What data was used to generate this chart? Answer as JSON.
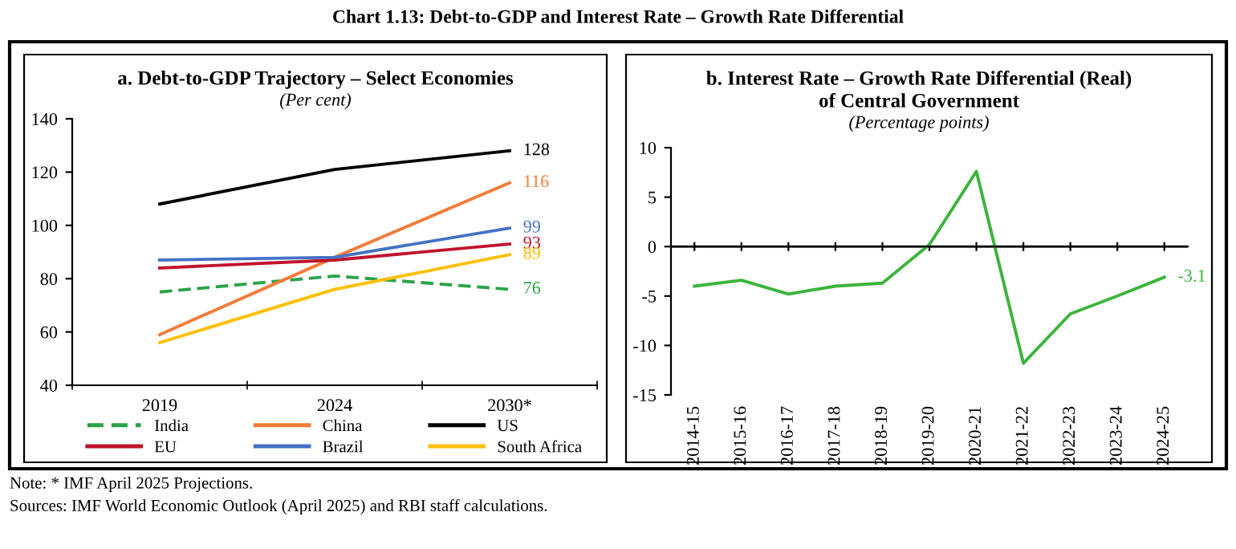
{
  "chart_data": [
    {
      "type": "line",
      "title": "a. Debt-to-GDP Trajectory – Select Economies",
      "subtitle": "(Per cent)",
      "annotations": [
        "Chart 1.13: Debt-to-GDP and Interest Rate – Growth Rate Differential"
      ],
      "categories": [
        "2019",
        "2024",
        "2030*"
      ],
      "ylim": [
        40,
        140
      ],
      "yticks": [
        40,
        60,
        80,
        100,
        120,
        140
      ],
      "grid": false,
      "legend": "bottom",
      "marker": "none",
      "series": [
        {
          "name": "India",
          "color": "#2ca24a",
          "line_style": "dashed",
          "values": [
            75,
            81,
            76
          ],
          "value_labels": [
            null,
            null,
            "76"
          ]
        },
        {
          "name": "China",
          "color": "#f47b3a",
          "values": [
            59,
            88,
            116
          ],
          "value_labels": [
            null,
            null,
            "116"
          ]
        },
        {
          "name": "US",
          "color": "#000000",
          "values": [
            108,
            121,
            128
          ],
          "value_labels": [
            null,
            null,
            "128"
          ]
        },
        {
          "name": "EU",
          "color": "#c0142b",
          "values": [
            84,
            87,
            93
          ],
          "value_labels": [
            null,
            null,
            "93"
          ]
        },
        {
          "name": "Brazil",
          "color": "#4472c4",
          "values": [
            87,
            88,
            99
          ],
          "value_labels": [
            null,
            null,
            "99"
          ]
        },
        {
          "name": "South Africa",
          "color": "#ffc000",
          "values": [
            56,
            76,
            89
          ],
          "value_labels": [
            null,
            null,
            "89"
          ]
        }
      ]
    },
    {
      "type": "line",
      "title": "b. Interest Rate – Growth Rate Differential (Real) of Central Government",
      "subtitle": "(Percentage points)",
      "annotations": [
        "Note: * IMF April 2025 Projections.",
        "Sources: IMF World Economic Outlook (April 2025) and RBI staff calculations."
      ],
      "categories": [
        "2014-15",
        "2015-16",
        "2016-17",
        "2017-18",
        "2018-19",
        "2019-20",
        "2020-21",
        "2021-22",
        "2022-23",
        "2023-24",
        "2024-25"
      ],
      "ylim": [
        -15,
        10
      ],
      "yticks": [
        -15,
        -10,
        -5,
        0,
        5,
        10
      ],
      "ref_lines": [
        {
          "axis": "y",
          "value": 0,
          "color": "#000000"
        }
      ],
      "grid": false,
      "legend": false,
      "marker": "none",
      "series": [
        {
          "color": "#3cb43c",
          "values": [
            -4,
            -3.4,
            -4.8,
            -4,
            -3.7,
            0.2,
            7.6,
            -11.8,
            -6.8,
            -5,
            -3.1
          ],
          "value_labels": [
            null,
            null,
            null,
            null,
            null,
            null,
            null,
            null,
            null,
            null,
            "-3.1"
          ]
        }
      ]
    }
  ]
}
